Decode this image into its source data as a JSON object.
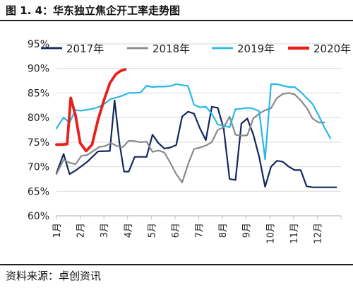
{
  "header": {
    "title": "图 1. 4：华东独立焦企开工率走势图"
  },
  "footer": {
    "source": "资料来源：卓创资讯"
  },
  "chart_data": {
    "type": "line",
    "ylim": [
      60,
      95
    ],
    "yticks": [
      "60%",
      "65%",
      "70%",
      "75%",
      "80%",
      "85%",
      "90%",
      "95%"
    ],
    "xlim": [
      1,
      13
    ],
    "xticks": [
      "1月",
      "2月",
      "3月",
      "4月",
      "5月",
      "6月",
      "7月",
      "8月",
      "9月",
      "10月",
      "11月",
      "12月"
    ],
    "legend_position": "top",
    "series": [
      {
        "name": "2017年",
        "color": "#14285e",
        "width": 2.2,
        "x": [
          1.0,
          1.3,
          1.55,
          1.8,
          2.3,
          2.75,
          3.25,
          3.45,
          3.65,
          3.85,
          4.05,
          4.3,
          4.55,
          4.8,
          5.05,
          5.3,
          5.55,
          5.8,
          6.05,
          6.3,
          6.55,
          6.8,
          7.05,
          7.3,
          7.55,
          7.8,
          8.05,
          8.3,
          8.55,
          8.8,
          9.05,
          9.3,
          9.55,
          9.8,
          10.05,
          10.3,
          10.55,
          10.8,
          11.05,
          11.3,
          11.55,
          11.8,
          12.05,
          12.3,
          12.55,
          12.8
        ],
        "y": [
          68.7,
          72.6,
          68.5,
          69.2,
          71.0,
          73.1,
          73.2,
          83.5,
          75.0,
          69.0,
          69.0,
          72.0,
          72.0,
          72.0,
          76.5,
          74.8,
          73.7,
          73.9,
          74.4,
          80.2,
          81.2,
          80.8,
          77.8,
          75.4,
          82.2,
          82.0,
          77.8,
          67.5,
          67.3,
          78.8,
          79.8,
          76.6,
          72.0,
          65.9,
          70.0,
          71.2,
          71.0,
          70.0,
          69.3,
          69.3,
          66.0,
          65.8,
          65.8,
          65.8,
          65.8,
          65.8
        ]
      },
      {
        "name": "2018年",
        "color": "#8a8a8a",
        "width": 2.2,
        "x": [
          1.0,
          1.3,
          1.55,
          1.8,
          2.05,
          2.3,
          2.55,
          2.8,
          3.05,
          3.3,
          3.55,
          3.8,
          4.05,
          4.3,
          4.55,
          4.8,
          5.05,
          5.3,
          5.55,
          5.8,
          6.05,
          6.3,
          6.55,
          6.8,
          7.05,
          7.3,
          7.55,
          7.8,
          8.05,
          8.3,
          8.55,
          8.8,
          9.05,
          9.3,
          9.55,
          9.8,
          10.05,
          10.3,
          10.55,
          10.8,
          11.05,
          11.3,
          11.55,
          11.8,
          12.05,
          12.3
        ],
        "y": [
          68.5,
          71.4,
          70.8,
          70.5,
          72.2,
          72.4,
          73.2,
          74.0,
          74.2,
          74.8,
          74.2,
          74.0,
          75.3,
          75.2,
          75.0,
          75.1,
          73.0,
          73.3,
          72.9,
          70.8,
          68.5,
          66.8,
          70.5,
          73.6,
          73.9,
          74.3,
          75.0,
          77.5,
          78.0,
          80.2,
          76.5,
          76.3,
          76.4,
          79.8,
          80.8,
          81.5,
          81.9,
          84.0,
          84.8,
          85.0,
          84.7,
          83.5,
          82.0,
          79.8,
          79.0,
          79.0
        ]
      },
      {
        "name": "2019年",
        "color": "#28b8e6",
        "width": 2.2,
        "x": [
          1.0,
          1.3,
          1.55,
          1.8,
          2.05,
          2.3,
          2.55,
          2.8,
          3.05,
          3.3,
          3.55,
          3.8,
          4.05,
          4.3,
          4.55,
          4.8,
          5.05,
          5.3,
          5.55,
          5.8,
          6.05,
          6.3,
          6.55,
          6.8,
          7.05,
          7.3,
          7.55,
          7.8,
          8.05,
          8.3,
          8.55,
          8.8,
          9.05,
          9.3,
          9.55,
          9.8,
          10.05,
          10.3,
          10.55,
          10.8,
          11.05,
          11.3,
          11.55,
          11.8,
          12.05,
          12.3,
          12.55
        ],
        "y": [
          77.8,
          80.0,
          79.0,
          81.5,
          81.4,
          81.6,
          81.8,
          82.2,
          82.9,
          83.8,
          84.1,
          84.5,
          85.0,
          85.0,
          85.1,
          86.5,
          86.2,
          86.3,
          86.3,
          86.4,
          86.8,
          86.6,
          86.4,
          82.6,
          82.1,
          82.2,
          80.8,
          78.6,
          78.4,
          78.0,
          81.7,
          81.8,
          82.0,
          81.8,
          81.3,
          71.5,
          86.8,
          86.8,
          86.5,
          86.2,
          86.2,
          85.2,
          84.0,
          82.8,
          80.5,
          78.0,
          75.8
        ]
      },
      {
        "name": "2020年",
        "color": "#e8201b",
        "width": 3.8,
        "x": [
          1.0,
          1.25,
          1.45,
          1.6,
          1.8,
          2.0,
          2.25,
          2.5,
          2.75,
          3.0,
          3.25,
          3.5,
          3.7,
          3.9
        ],
        "y": [
          74.5,
          74.5,
          74.6,
          84.0,
          80.5,
          74.8,
          73.2,
          74.5,
          79.5,
          83.5,
          87.0,
          88.8,
          89.5,
          89.8
        ]
      }
    ]
  }
}
